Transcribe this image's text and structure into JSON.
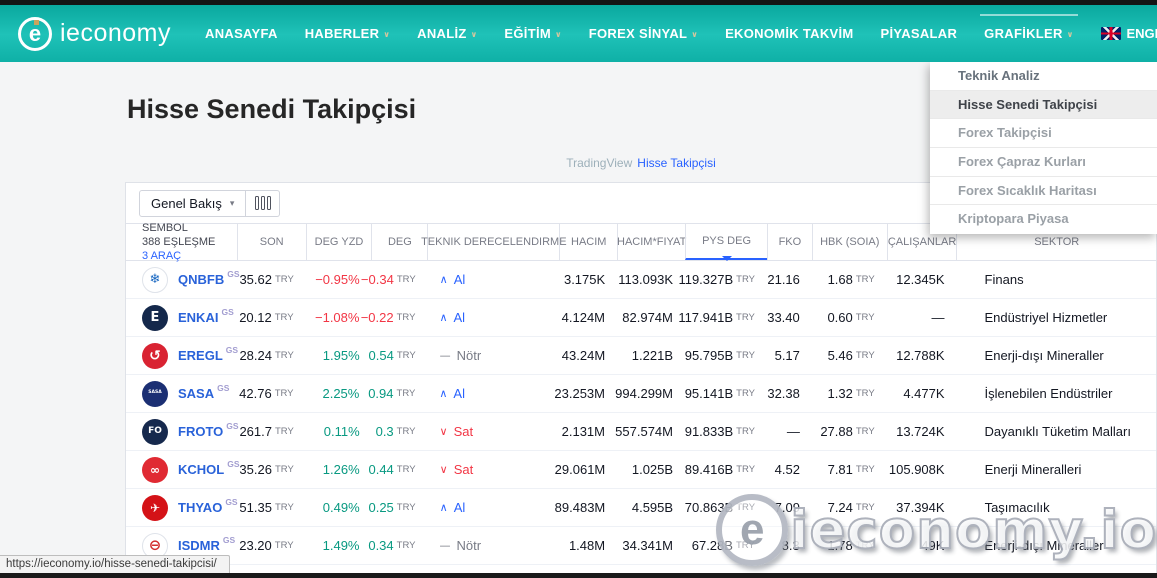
{
  "nav": {
    "brand": "ieconomy",
    "caret": "∨",
    "items": [
      {
        "label": "ANASAYFA",
        "caret": false
      },
      {
        "label": "HABERLER",
        "caret": true
      },
      {
        "label": "ANALİZ",
        "caret": true
      },
      {
        "label": "EĞİTİM",
        "caret": true
      },
      {
        "label": "FOREX SİNYAL",
        "caret": true
      },
      {
        "label": "EKONOMİK TAKVİM",
        "caret": false
      },
      {
        "label": "PİYASALAR",
        "caret": false
      },
      {
        "label": "GRAFİKLER",
        "caret": true,
        "active": true
      }
    ],
    "language": {
      "label": "ENGLISH",
      "flag": "uk-flag-icon"
    }
  },
  "dropdown": {
    "items": [
      {
        "label": "Teknik Analiz",
        "active": false
      },
      {
        "label": "Hisse Senedi Takipçisi",
        "active": true
      },
      {
        "label": "Forex Takipçisi",
        "active": false
      },
      {
        "label": "Forex Çapraz Kurları",
        "active": false
      },
      {
        "label": "Forex Sıcaklık Haritası",
        "active": false
      },
      {
        "label": "Kriptopara Piyasa",
        "active": false
      }
    ]
  },
  "page": {
    "title": "Hisse Senedi Takipçisi"
  },
  "attribution": {
    "prefix": "TradingView",
    "link_label": "Hisse Takipçisi"
  },
  "toolbar": {
    "view_label": "Genel Bakış",
    "view_caret": "▾"
  },
  "screener": {
    "currency": "TRY",
    "symbol_header": {
      "line1": "SEMBOL",
      "line2": "388 EŞLEŞME",
      "line3": "3 ARAÇ"
    },
    "columns": [
      "SON",
      "DEG YZD",
      "DEG",
      "TEKNIK DERECELENDIRME",
      "HACIM",
      "HACIM*FIYAT",
      "PYS DEG",
      "FKO",
      "HBK (SOIA)",
      "ÇALIŞANLAR",
      "SEKTOR"
    ],
    "sorted_column": "PYS DEG",
    "rows": [
      {
        "symbol": "QNBFB",
        "exchange": "GS",
        "logo": {
          "char": "❄",
          "bg": "#ffffff",
          "color": "#1565c0",
          "border": "#dfe3ea",
          "size": "13px"
        },
        "last": "35.62",
        "chg_pct": "−0.95%",
        "chg": "−0.34",
        "trend": "down",
        "rating_icon": "∧",
        "rating": "Al",
        "rating_class": "buy",
        "volume": "3.175K",
        "vol_price": "113.093K",
        "mkt_cap": "119.327B",
        "fko": "21.16",
        "hbk": "1.68",
        "employees": "12.345K",
        "sector": "Finans"
      },
      {
        "symbol": "ENKAI",
        "exchange": "GS",
        "logo": {
          "char": "E",
          "bg": "#14284b",
          "color": "#ffffff",
          "border": "",
          "size": "13px"
        },
        "last": "20.12",
        "chg_pct": "−1.08%",
        "chg": "−0.22",
        "trend": "down",
        "rating_icon": "∧",
        "rating": "Al",
        "rating_class": "buy",
        "volume": "4.124M",
        "vol_price": "82.974M",
        "mkt_cap": "117.941B",
        "fko": "33.40",
        "hbk": "0.60",
        "employees": "—",
        "sector": "Endüstriyel Hizmetler"
      },
      {
        "symbol": "EREGL",
        "exchange": "GS",
        "logo": {
          "char": "↺",
          "bg": "#d92332",
          "color": "#ffffff",
          "border": "",
          "size": "14px"
        },
        "last": "28.24",
        "chg_pct": "1.95%",
        "chg": "0.54",
        "trend": "up",
        "rating_icon": "—",
        "rating": "Nötr",
        "rating_class": "neutral",
        "volume": "43.24M",
        "vol_price": "1.221B",
        "mkt_cap": "95.795B",
        "fko": "5.17",
        "hbk": "5.46",
        "employees": "12.788K",
        "sector": "Enerji-dışı Mineraller"
      },
      {
        "symbol": "SASA",
        "exchange": "GS",
        "logo": {
          "char": "SASA",
          "bg": "#1b2f73",
          "color": "#ffffff",
          "border": "",
          "size": "4.5px"
        },
        "last": "42.76",
        "chg_pct": "2.25%",
        "chg": "0.94",
        "trend": "up",
        "rating_icon": "∧",
        "rating": "Al",
        "rating_class": "buy",
        "volume": "23.253M",
        "vol_price": "994.299M",
        "mkt_cap": "95.141B",
        "fko": "32.38",
        "hbk": "1.32",
        "employees": "4.477K",
        "sector": "İşlenebilen Endüstriler"
      },
      {
        "symbol": "FROTO",
        "exchange": "GS",
        "logo": {
          "char": "FO",
          "bg": "#16294d",
          "color": "#ffffff",
          "border": "",
          "size": "9px"
        },
        "last": "261.7",
        "chg_pct": "0.11%",
        "chg": "0.3",
        "trend": "up",
        "rating_icon": "∨",
        "rating": "Sat",
        "rating_class": "sell",
        "volume": "2.131M",
        "vol_price": "557.574M",
        "mkt_cap": "91.833B",
        "fko": "—",
        "hbk": "27.88",
        "employees": "13.724K",
        "sector": "Dayanıklı Tüketim Malları"
      },
      {
        "symbol": "KCHOL",
        "exchange": "GS",
        "logo": {
          "char": "∞",
          "bg": "#e02a33",
          "color": "#ffffff",
          "border": "",
          "size": "12px"
        },
        "last": "35.26",
        "chg_pct": "1.26%",
        "chg": "0.44",
        "trend": "up",
        "rating_icon": "∨",
        "rating": "Sat",
        "rating_class": "sell",
        "volume": "29.061M",
        "vol_price": "1.025B",
        "mkt_cap": "89.416B",
        "fko": "4.52",
        "hbk": "7.81",
        "employees": "105.908K",
        "sector": "Enerji Mineralleri"
      },
      {
        "symbol": "THYAO",
        "exchange": "GS",
        "logo": {
          "char": "✈",
          "bg": "#d41217",
          "color": "#ffffff",
          "border": "",
          "size": "12px"
        },
        "last": "51.35",
        "chg_pct": "0.49%",
        "chg": "0.25",
        "trend": "up",
        "rating_icon": "∧",
        "rating": "Al",
        "rating_class": "buy",
        "volume": "89.483M",
        "vol_price": "4.595B",
        "mkt_cap": "70.863B",
        "fko": "7.09",
        "hbk": "7.24",
        "employees": "37.394K",
        "sector": "Taşımacılık"
      },
      {
        "symbol": "ISDMR",
        "exchange": "GS",
        "logo": {
          "char": "⊖",
          "bg": "#ffffff",
          "color": "#d32f2f",
          "border": "#dfe3ea",
          "size": "15px"
        },
        "last": "23.20",
        "chg_pct": "1.49%",
        "chg": "0.34",
        "trend": "up",
        "rating_icon": "—",
        "rating": "Nötr",
        "rating_class": "neutral",
        "volume": "1.48M",
        "vol_price": "34.341M",
        "mkt_cap": "67.28B",
        "fko": "8.3",
        "hbk": "1.78",
        "employees": "49K",
        "sector": "Enerji-dışı Mineraller"
      }
    ]
  },
  "watermark": {
    "logo_char": "e",
    "text": "ieconomy.io"
  },
  "statusbar": {
    "url": "https://ieconomy.io/hisse-senedi-takipcisi/"
  },
  "colors": {
    "teal": "#12b5ab",
    "link_blue": "#2962ff",
    "up_green": "#089981",
    "down_red": "#f23645",
    "neutral_grey": "#787b86"
  }
}
